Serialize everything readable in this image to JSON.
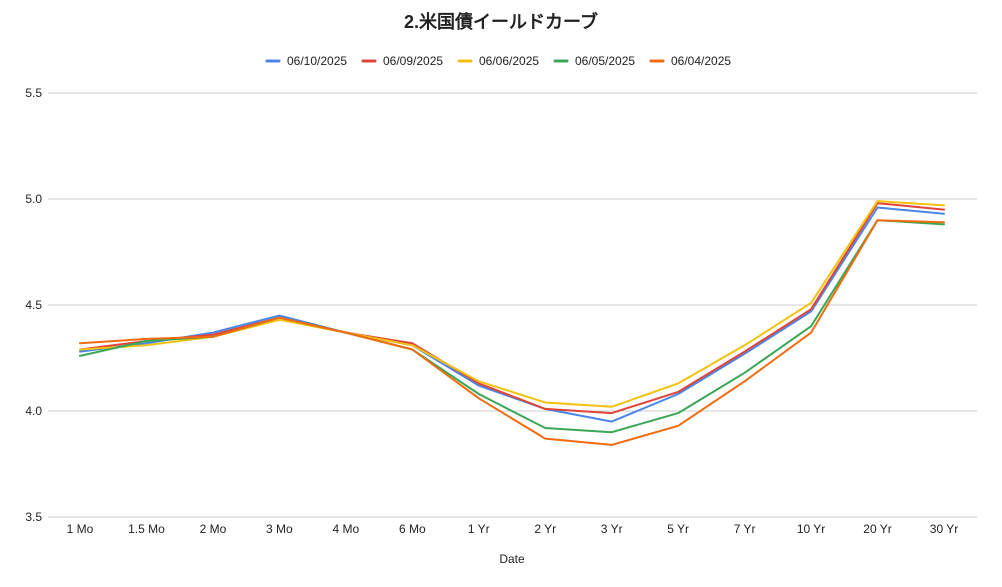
{
  "chart_data": {
    "type": "line",
    "title": "2.米国債イールドカーブ",
    "xlabel": "Date",
    "ylabel": "",
    "ylim": [
      3.5,
      5.5
    ],
    "yticks": [
      "3.5",
      "4.0",
      "4.5",
      "5.0",
      "5.5"
    ],
    "grid": true,
    "legend_position": "top",
    "categories": [
      "1 Mo",
      "1.5 Mo",
      "2 Mo",
      "3 Mo",
      "4 Mo",
      "6 Mo",
      "1 Yr",
      "2 Yr",
      "3 Yr",
      "5 Yr",
      "7 Yr",
      "10 Yr",
      "20 Yr",
      "30 Yr"
    ],
    "series": [
      {
        "name": "06/10/2025",
        "color": "#4a86e8",
        "values": [
          4.28,
          4.32,
          4.37,
          4.45,
          4.37,
          4.31,
          4.12,
          4.01,
          3.95,
          4.08,
          4.27,
          4.47,
          4.96,
          4.93
        ]
      },
      {
        "name": "06/09/2025",
        "color": "#e0443a",
        "values": [
          4.29,
          4.33,
          4.36,
          4.44,
          4.37,
          4.32,
          4.13,
          4.01,
          3.99,
          4.09,
          4.28,
          4.48,
          4.98,
          4.95
        ]
      },
      {
        "name": "06/06/2025",
        "color": "#f4c20d",
        "values": [
          4.29,
          4.31,
          4.35,
          4.43,
          4.37,
          4.31,
          4.14,
          4.04,
          4.02,
          4.13,
          4.31,
          4.51,
          4.99,
          4.97
        ]
      },
      {
        "name": "06/05/2025",
        "color": "#3aa757",
        "values": [
          4.26,
          4.33,
          4.35,
          4.44,
          4.37,
          4.29,
          4.08,
          3.92,
          3.9,
          3.99,
          4.18,
          4.4,
          4.9,
          4.88
        ]
      },
      {
        "name": "06/04/2025",
        "color": "#f26b10",
        "values": [
          4.32,
          4.34,
          4.35,
          4.44,
          4.37,
          4.29,
          4.06,
          3.87,
          3.84,
          3.93,
          4.14,
          4.37,
          4.9,
          4.89
        ]
      }
    ]
  }
}
